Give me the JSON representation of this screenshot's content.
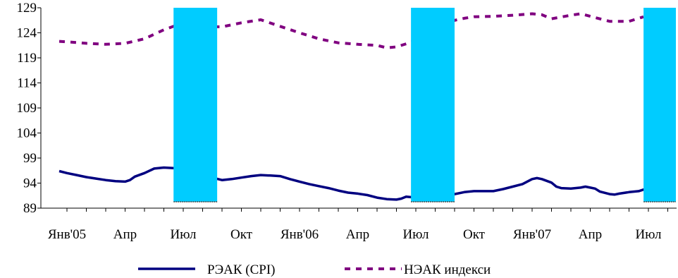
{
  "chart_data": {
    "type": "line",
    "title": "",
    "xlabel": "",
    "ylabel": "",
    "ylim": [
      89,
      129
    ],
    "yticks": [
      89,
      94,
      99,
      104,
      109,
      114,
      119,
      124,
      129
    ],
    "x_tick_labels": [
      {
        "month": 0,
        "label": "Янв'05"
      },
      {
        "month": 3,
        "label": "Апр"
      },
      {
        "month": 6,
        "label": "Июл"
      },
      {
        "month": 9,
        "label": "Окт"
      },
      {
        "month": 12,
        "label": "Янв'06"
      },
      {
        "month": 15,
        "label": "Апр"
      },
      {
        "month": 18,
        "label": "Июл"
      },
      {
        "month": 21,
        "label": "Окт"
      },
      {
        "month": 24,
        "label": "Янв'07"
      },
      {
        "month": 27,
        "label": "Апр"
      },
      {
        "month": 30,
        "label": "Июл"
      }
    ],
    "x_month_range": [
      0,
      32.5
    ],
    "shaded_periods": [
      {
        "from": 5.5,
        "to": 7.75,
        "color": "#00CCFF"
      },
      {
        "from": 17.75,
        "to": 20.0,
        "color": "#00CCFF"
      },
      {
        "from": 29.75,
        "to": 32.5,
        "color": "#00CCFF"
      }
    ],
    "series": [
      {
        "name": "РЭАК (CPI)",
        "style": "solid",
        "color": "#000080",
        "points": [
          [
            -0.4,
            96.4
          ],
          [
            0,
            96.0
          ],
          [
            0.5,
            95.6
          ],
          [
            1,
            95.2
          ],
          [
            1.5,
            94.9
          ],
          [
            2,
            94.6
          ],
          [
            2.5,
            94.4
          ],
          [
            3,
            94.3
          ],
          [
            3.25,
            94.6
          ],
          [
            3.5,
            95.3
          ],
          [
            4,
            96.0
          ],
          [
            4.5,
            96.9
          ],
          [
            5,
            97.1
          ],
          [
            5.5,
            97.0
          ],
          [
            8,
            94.6
          ],
          [
            8.5,
            94.8
          ],
          [
            9,
            95.1
          ],
          [
            9.5,
            95.4
          ],
          [
            10,
            95.6
          ],
          [
            10.5,
            95.5
          ],
          [
            11,
            95.4
          ],
          [
            11.5,
            94.8
          ],
          [
            12,
            94.3
          ],
          [
            12.5,
            93.8
          ],
          [
            13,
            93.4
          ],
          [
            13.5,
            93.0
          ],
          [
            14,
            92.5
          ],
          [
            14.5,
            92.1
          ],
          [
            15,
            91.9
          ],
          [
            15.5,
            91.6
          ],
          [
            16,
            91.1
          ],
          [
            16.5,
            90.8
          ],
          [
            17,
            90.7
          ],
          [
            17.25,
            90.9
          ],
          [
            17.5,
            91.3
          ],
          [
            17.75,
            91.2
          ],
          [
            20,
            91.8
          ],
          [
            20.5,
            92.2
          ],
          [
            21,
            92.4
          ],
          [
            21.5,
            92.4
          ],
          [
            22,
            92.4
          ],
          [
            22.5,
            92.8
          ],
          [
            23,
            93.3
          ],
          [
            23.5,
            93.8
          ],
          [
            24,
            94.8
          ],
          [
            24.25,
            95.0
          ],
          [
            24.5,
            94.8
          ],
          [
            25,
            94.1
          ],
          [
            25.25,
            93.3
          ],
          [
            25.5,
            93.0
          ],
          [
            26,
            92.9
          ],
          [
            26.5,
            93.1
          ],
          [
            26.75,
            93.3
          ],
          [
            27,
            93.1
          ],
          [
            27.25,
            92.9
          ],
          [
            27.5,
            92.3
          ],
          [
            28,
            91.8
          ],
          [
            28.25,
            91.7
          ],
          [
            28.5,
            91.9
          ],
          [
            29,
            92.2
          ],
          [
            29.5,
            92.4
          ],
          [
            29.75,
            92.7
          ],
          [
            30,
            92.8
          ]
        ]
      },
      {
        "name": "НЭАК индекси",
        "style": "dashed",
        "color": "#800080",
        "points": [
          [
            -0.4,
            122.3
          ],
          [
            0,
            122.2
          ],
          [
            1,
            121.9
          ],
          [
            2,
            121.7
          ],
          [
            3,
            121.9
          ],
          [
            4,
            122.8
          ],
          [
            5,
            124.6
          ],
          [
            5.5,
            125.3
          ],
          [
            8,
            125.2
          ],
          [
            9,
            126.0
          ],
          [
            10,
            126.6
          ],
          [
            11,
            125.3
          ],
          [
            12,
            124.0
          ],
          [
            13,
            122.8
          ],
          [
            14,
            122.0
          ],
          [
            15,
            121.7
          ],
          [
            16,
            121.5
          ],
          [
            16.5,
            121.0
          ],
          [
            17,
            121.2
          ],
          [
            17.75,
            122.1
          ],
          [
            20,
            126.5
          ],
          [
            20.5,
            126.9
          ],
          [
            21,
            127.2
          ],
          [
            22,
            127.3
          ],
          [
            23,
            127.5
          ],
          [
            24,
            127.8
          ],
          [
            24.5,
            127.6
          ],
          [
            25,
            126.8
          ],
          [
            26,
            127.5
          ],
          [
            26.5,
            127.8
          ],
          [
            27,
            127.3
          ],
          [
            28,
            126.3
          ],
          [
            29,
            126.3
          ],
          [
            29.75,
            127.2
          ]
        ]
      }
    ],
    "legend": {
      "position": "bottom-center"
    }
  }
}
